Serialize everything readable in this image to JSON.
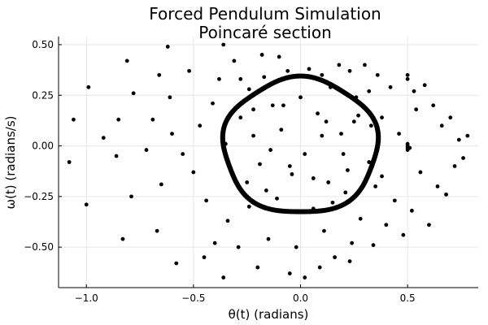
{
  "chart_data": {
    "type": "scatter",
    "title": "Forced Pendulum Simulation",
    "subtitle": "Poincaré section",
    "xlabel": "θ(t) (radians)",
    "ylabel": "ω(t) (radians/s)",
    "xlim": [
      -1.13,
      0.83
    ],
    "ylim": [
      -0.7,
      0.54
    ],
    "xticks": [
      -1.0,
      -0.5,
      0.0,
      0.5
    ],
    "xtick_labels": [
      "−1.0",
      "−0.5",
      "0.0",
      "0.5"
    ],
    "yticks": [
      -0.5,
      -0.25,
      0.0,
      0.25,
      0.5
    ],
    "ytick_labels": [
      "−0.50",
      "−0.25",
      "0.00",
      "0.25",
      "0.50"
    ],
    "grid": true,
    "legend": false,
    "marker_color": "#000000",
    "attractor_ring": {
      "center_x": 0.0,
      "center_y": 0.0,
      "radius_x": 0.36,
      "radius_y": 0.335,
      "description_points_estimated": true
    },
    "series": [
      {
        "points": [
          [
            -1.06,
            0.13
          ],
          [
            -1.08,
            -0.08
          ],
          [
            -0.99,
            0.29
          ],
          [
            -1.0,
            -0.29
          ],
          [
            -0.92,
            0.04
          ],
          [
            -0.86,
            -0.05
          ],
          [
            -0.85,
            0.13
          ],
          [
            -0.83,
            -0.46
          ],
          [
            -0.81,
            0.42
          ],
          [
            -0.79,
            -0.25
          ],
          [
            -0.78,
            0.26
          ],
          [
            -0.72,
            -0.02
          ],
          [
            -0.69,
            0.13
          ],
          [
            -0.67,
            -0.42
          ],
          [
            -0.66,
            0.35
          ],
          [
            -0.65,
            -0.19
          ],
          [
            -0.62,
            0.49
          ],
          [
            -0.61,
            0.24
          ],
          [
            -0.6,
            0.06
          ],
          [
            -0.55,
            -0.04
          ],
          [
            -0.52,
            0.37
          ],
          [
            -0.5,
            -0.13
          ],
          [
            -0.47,
            0.1
          ],
          [
            -0.44,
            -0.27
          ],
          [
            -0.41,
            0.21
          ],
          [
            -0.4,
            -0.48
          ],
          [
            -0.38,
            0.33
          ],
          [
            -0.35,
            0.01
          ],
          [
            -0.34,
            -0.37
          ],
          [
            -0.31,
            0.42
          ],
          [
            -0.29,
            -0.5
          ],
          [
            -0.28,
            0.14
          ],
          [
            -0.25,
            -0.18
          ],
          [
            -0.24,
            0.28
          ],
          [
            -0.22,
            0.05
          ],
          [
            -0.19,
            -0.09
          ],
          [
            -0.17,
            0.34
          ],
          [
            -0.15,
            -0.46
          ],
          [
            -0.13,
            0.2
          ],
          [
            -0.11,
            -0.26
          ],
          [
            -0.09,
            0.08
          ],
          [
            -0.06,
            0.37
          ],
          [
            -0.04,
            -0.14
          ],
          [
            -0.02,
            -0.5
          ],
          [
            0.0,
            0.24
          ],
          [
            0.02,
            -0.04
          ],
          [
            0.04,
            0.38
          ],
          [
            0.06,
            -0.31
          ],
          [
            0.08,
            0.16
          ],
          [
            0.1,
            0.35
          ],
          [
            0.11,
            -0.42
          ],
          [
            0.13,
            -0.18
          ],
          [
            0.14,
            0.29
          ],
          [
            0.16,
            -0.55
          ],
          [
            0.18,
            0.4
          ],
          [
            0.19,
            0.06
          ],
          [
            0.21,
            -0.23
          ],
          [
            0.23,
            0.37
          ],
          [
            0.24,
            -0.48
          ],
          [
            0.26,
            0.24
          ],
          [
            0.28,
            -0.36
          ],
          [
            0.3,
            0.4
          ],
          [
            0.32,
            -0.08
          ],
          [
            0.34,
            -0.49
          ],
          [
            0.36,
            0.35
          ],
          [
            0.38,
            0.14
          ],
          [
            0.4,
            -0.39
          ],
          [
            0.42,
            0.29
          ],
          [
            0.44,
            -0.27
          ],
          [
            0.46,
            0.06
          ],
          [
            0.48,
            -0.44
          ],
          [
            0.5,
            0.33
          ],
          [
            0.51,
            -0.01
          ],
          [
            0.52,
            -0.32
          ],
          [
            0.54,
            0.18
          ],
          [
            0.56,
            -0.13
          ],
          [
            0.58,
            0.3
          ],
          [
            0.6,
            -0.39
          ],
          [
            0.62,
            0.2
          ],
          [
            0.64,
            -0.2
          ],
          [
            0.66,
            0.1
          ],
          [
            0.68,
            -0.24
          ],
          [
            0.7,
            0.14
          ],
          [
            0.72,
            -0.1
          ],
          [
            0.74,
            0.03
          ],
          [
            0.76,
            -0.06
          ],
          [
            0.78,
            0.05
          ],
          [
            -0.58,
            -0.58
          ],
          [
            -0.45,
            -0.55
          ],
          [
            -0.36,
            -0.65
          ],
          [
            -0.2,
            -0.6
          ],
          [
            -0.05,
            -0.63
          ],
          [
            0.02,
            -0.65
          ],
          [
            0.09,
            -0.6
          ],
          [
            0.23,
            -0.57
          ],
          [
            -0.1,
            0.44
          ],
          [
            -0.18,
            0.45
          ],
          [
            -0.36,
            0.5
          ],
          [
            0.53,
            0.27
          ],
          [
            0.5,
            0.35
          ],
          [
            0.5,
            -0.02
          ],
          [
            0.5,
            0.0
          ],
          [
            0.5,
            -0.01
          ],
          [
            0.5,
            0.01
          ],
          [
            -0.14,
            -0.02
          ],
          [
            -0.05,
            -0.1
          ],
          [
            0.1,
            0.05
          ],
          [
            0.2,
            -0.04
          ],
          [
            -0.24,
            -0.3
          ],
          [
            0.15,
            -0.28
          ],
          [
            0.27,
            0.15
          ],
          [
            -0.28,
            0.33
          ],
          [
            0.33,
            0.1
          ],
          [
            0.35,
            -0.2
          ],
          [
            0.12,
            0.12
          ],
          [
            -0.08,
            0.2
          ],
          [
            0.25,
            0.12
          ],
          [
            0.22,
            -0.12
          ],
          [
            0.32,
            0.27
          ],
          [
            0.38,
            -0.15
          ],
          [
            -0.22,
            0.18
          ],
          [
            -0.16,
            -0.22
          ],
          [
            0.06,
            -0.16
          ],
          [
            0.18,
            0.28
          ]
        ]
      }
    ]
  }
}
